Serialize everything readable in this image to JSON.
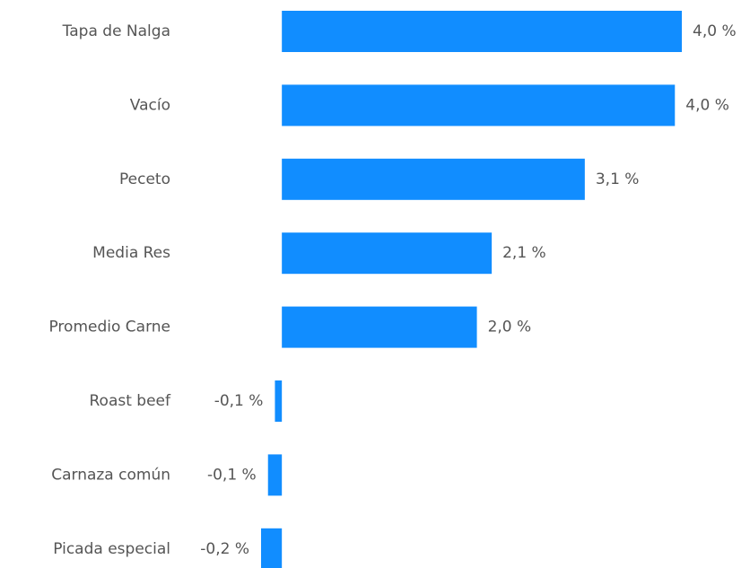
{
  "chart_data": {
    "type": "hbar",
    "categories": [
      "Tapa de Nalga",
      "Vacío",
      "Peceto",
      "Media Res",
      "Promedio Carne",
      "Roast beef",
      "Carnaza común",
      "Picada especial"
    ],
    "values": [
      4.04,
      3.97,
      3.06,
      2.12,
      1.97,
      -0.07,
      -0.14,
      -0.21
    ],
    "value_labels": [
      "4,0 %",
      "4,0 %",
      "3,1 %",
      "2,1 %",
      "2,0 %",
      "-0,1 %",
      "-0,1 %",
      "-0,2 %"
    ],
    "color": "#118dff"
  }
}
